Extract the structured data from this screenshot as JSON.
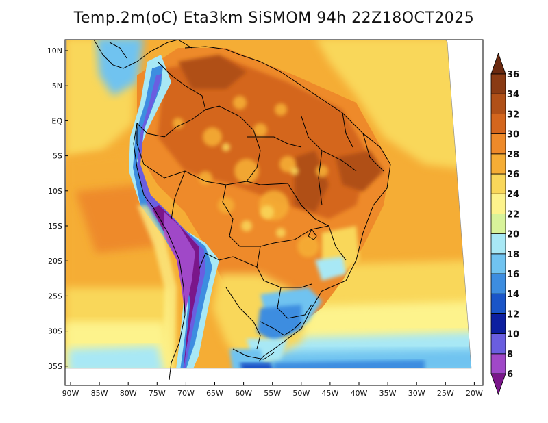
{
  "title": "Temp.2m(oC) Eta3km SiSMOM 94h 22Z18OCT2025",
  "map": {
    "lat_labels": [
      "10N",
      "5N",
      "EQ",
      "5S",
      "10S",
      "15S",
      "20S",
      "25S",
      "30S",
      "35S"
    ],
    "lon_labels": [
      "90W",
      "85W",
      "80W",
      "75W",
      "70W",
      "65W",
      "60W",
      "55W",
      "50W",
      "45W",
      "40W",
      "35W",
      "30W",
      "25W",
      "20W"
    ]
  },
  "colorbar": {
    "labels": [
      "36",
      "34",
      "32",
      "30",
      "28",
      "26",
      "24",
      "22",
      "20",
      "18",
      "16",
      "14",
      "12",
      "10",
      "8",
      "6"
    ],
    "colors": [
      "#6b2a10",
      "#8a3b14",
      "#b05018",
      "#d4661e",
      "#ee8a2a",
      "#f5ad35",
      "#f9d75a",
      "#fdf38c",
      "#d8f39a",
      "#a8e8f5",
      "#70c3f0",
      "#3d8de0",
      "#1a55c8",
      "#0d1fa0",
      "#6a5ee0",
      "#a048c8",
      "#7a168a"
    ],
    "interval_colors_bottom_to_top": [
      "#7a168a",
      "#a048c8",
      "#6a5ee0",
      "#0d1fa0",
      "#1a55c8",
      "#3d8de0",
      "#70c3f0",
      "#a8e8f5",
      "#d8f39a",
      "#fdf38c",
      "#f9d75a",
      "#f5ad35",
      "#ee8a2a",
      "#d4661e",
      "#b05018",
      "#8a3b14",
      "#6b2a10"
    ]
  }
}
